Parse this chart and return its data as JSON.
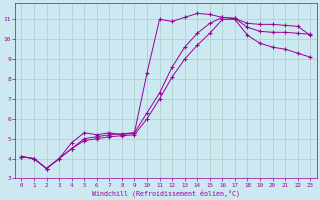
{
  "title": "",
  "xlabel": "Windchill (Refroidissement éolien,°C)",
  "ylabel": "",
  "background_color": "#cce8f0",
  "plot_bg_color": "#cce8f0",
  "grid_color": "#aacccc",
  "line_color": "#990099",
  "xlim": [
    -0.5,
    23.5
  ],
  "ylim": [
    3,
    11.8
  ],
  "yticks": [
    3,
    4,
    5,
    6,
    7,
    8,
    9,
    10,
    11
  ],
  "xticks": [
    0,
    1,
    2,
    3,
    4,
    5,
    6,
    7,
    8,
    9,
    10,
    11,
    12,
    13,
    14,
    15,
    16,
    17,
    18,
    19,
    20,
    21,
    22,
    23
  ],
  "series": [
    {
      "x": [
        0,
        1,
        2,
        3,
        4,
        5,
        6,
        7,
        8,
        9,
        10,
        11,
        12,
        13,
        14,
        15,
        16,
        17,
        18,
        19,
        20,
        21,
        22,
        23
      ],
      "y": [
        4.1,
        4.0,
        3.5,
        4.0,
        4.8,
        5.3,
        5.2,
        5.3,
        5.2,
        5.3,
        8.3,
        11.0,
        10.9,
        11.1,
        11.3,
        11.25,
        11.1,
        11.05,
        10.8,
        10.75,
        10.75,
        10.7,
        10.65,
        10.2
      ],
      "marker": "+"
    },
    {
      "x": [
        0,
        1,
        2,
        3,
        4,
        5,
        6,
        7,
        8,
        9,
        10,
        11,
        12,
        13,
        14,
        15,
        16,
        17,
        18,
        19,
        20,
        21,
        22,
        23
      ],
      "y": [
        4.1,
        4.0,
        3.5,
        4.0,
        4.5,
        5.0,
        5.1,
        5.2,
        5.25,
        5.3,
        6.3,
        7.3,
        8.6,
        9.6,
        10.3,
        10.8,
        11.1,
        11.05,
        10.6,
        10.4,
        10.35,
        10.35,
        10.3,
        10.25
      ],
      "marker": "+"
    },
    {
      "x": [
        0,
        1,
        2,
        3,
        4,
        5,
        6,
        7,
        8,
        9,
        10,
        11,
        12,
        13,
        14,
        15,
        16,
        17,
        18,
        19,
        20,
        21,
        22,
        23
      ],
      "y": [
        4.1,
        4.0,
        3.5,
        4.0,
        4.5,
        4.9,
        5.0,
        5.1,
        5.15,
        5.2,
        6.0,
        7.0,
        8.1,
        9.0,
        9.7,
        10.3,
        11.0,
        11.0,
        10.2,
        9.8,
        9.6,
        9.5,
        9.3,
        9.1
      ],
      "marker": "+"
    }
  ]
}
